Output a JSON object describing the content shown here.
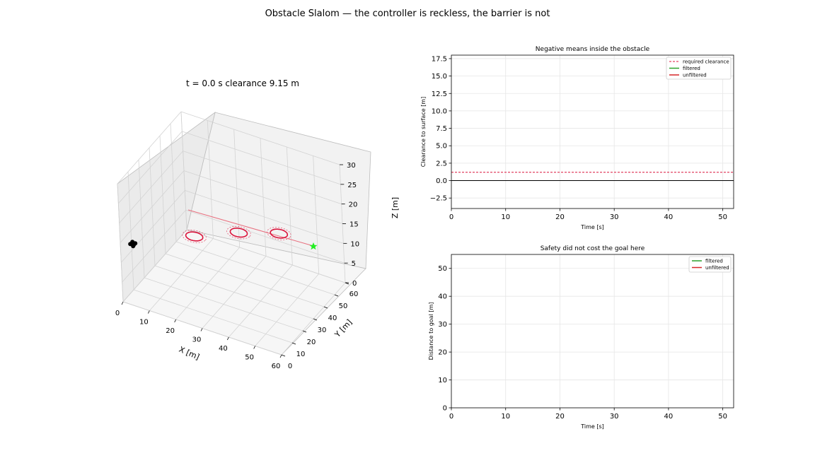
{
  "figure": {
    "suptitle": "Obstacle Slalom — the controller is reckless, the barrier is not"
  },
  "chart_data": [
    {
      "type": "scatter3d",
      "title": "t = 0.0 s   clearance 9.15 m",
      "xlabel": "X [m]",
      "ylabel": "Y [m]",
      "zlabel": "Z [m]",
      "xlim": [
        0,
        60
      ],
      "ylim": [
        0,
        60
      ],
      "zlim": [
        0,
        30
      ],
      "xticks": [
        "0",
        "10",
        "20",
        "30",
        "40",
        "50",
        "60"
      ],
      "yticks": [
        "0",
        "10",
        "20",
        "30",
        "40",
        "50",
        "60"
      ],
      "zticks": [
        "0",
        "5",
        "10",
        "15",
        "20",
        "25",
        "30"
      ],
      "grid": true,
      "start_position": [
        5,
        5,
        15
      ],
      "goal_position": [
        55,
        55,
        15
      ],
      "obstacles": [
        {
          "center": [
            20,
            20,
            15
          ],
          "radius": 3,
          "clearance_radius": 4.2
        },
        {
          "center": [
            32,
            32,
            15
          ],
          "radius": 3,
          "clearance_radius": 4.2
        },
        {
          "center": [
            44,
            40,
            15
          ],
          "radius": 3,
          "clearance_radius": 4.2
        }
      ],
      "reference_path": {
        "from": [
          5,
          5,
          15
        ],
        "to": [
          55,
          55,
          15
        ]
      },
      "colors": {
        "obstacle": "#dc143c",
        "goal": "#22ee22",
        "vehicle": "#000000",
        "reference_path": "#e8707f"
      }
    },
    {
      "type": "line",
      "title": "Negative means inside the obstacle",
      "xlabel": "Time [s]",
      "ylabel": "Clearance to surface [m]",
      "xlim": [
        0,
        52
      ],
      "ylim": [
        -4,
        18
      ],
      "xticks": [
        "0",
        "10",
        "20",
        "30",
        "40",
        "50"
      ],
      "yticks": [
        "−2.5",
        "0.0",
        "2.5",
        "5.0",
        "7.5",
        "10.0",
        "12.5",
        "15.0",
        "17.5"
      ],
      "grid": true,
      "legend_position": "top-right",
      "series": [
        {
          "name": "required clearance",
          "style": "dashed",
          "color": "#dc143c",
          "y_constant": 1.2
        },
        {
          "name": "filtered",
          "style": "solid",
          "color": "#2ca02c",
          "values": []
        },
        {
          "name": "unfiltered",
          "style": "solid",
          "color": "#d62728",
          "values": []
        }
      ],
      "reference_line": {
        "y": 0,
        "color": "#000000"
      }
    },
    {
      "type": "line",
      "title": "Safety did not cost the goal here",
      "xlabel": "Time [s]",
      "ylabel": "Distance to goal [m]",
      "xlim": [
        0,
        52
      ],
      "ylim": [
        0,
        55
      ],
      "xticks": [
        "0",
        "10",
        "20",
        "30",
        "40",
        "50"
      ],
      "yticks": [
        "0",
        "10",
        "20",
        "30",
        "40",
        "50"
      ],
      "grid": true,
      "legend_position": "top-right",
      "series": [
        {
          "name": "filtered",
          "style": "solid",
          "color": "#2ca02c",
          "values": []
        },
        {
          "name": "unfiltered",
          "style": "solid",
          "color": "#d62728",
          "values": []
        }
      ]
    }
  ]
}
